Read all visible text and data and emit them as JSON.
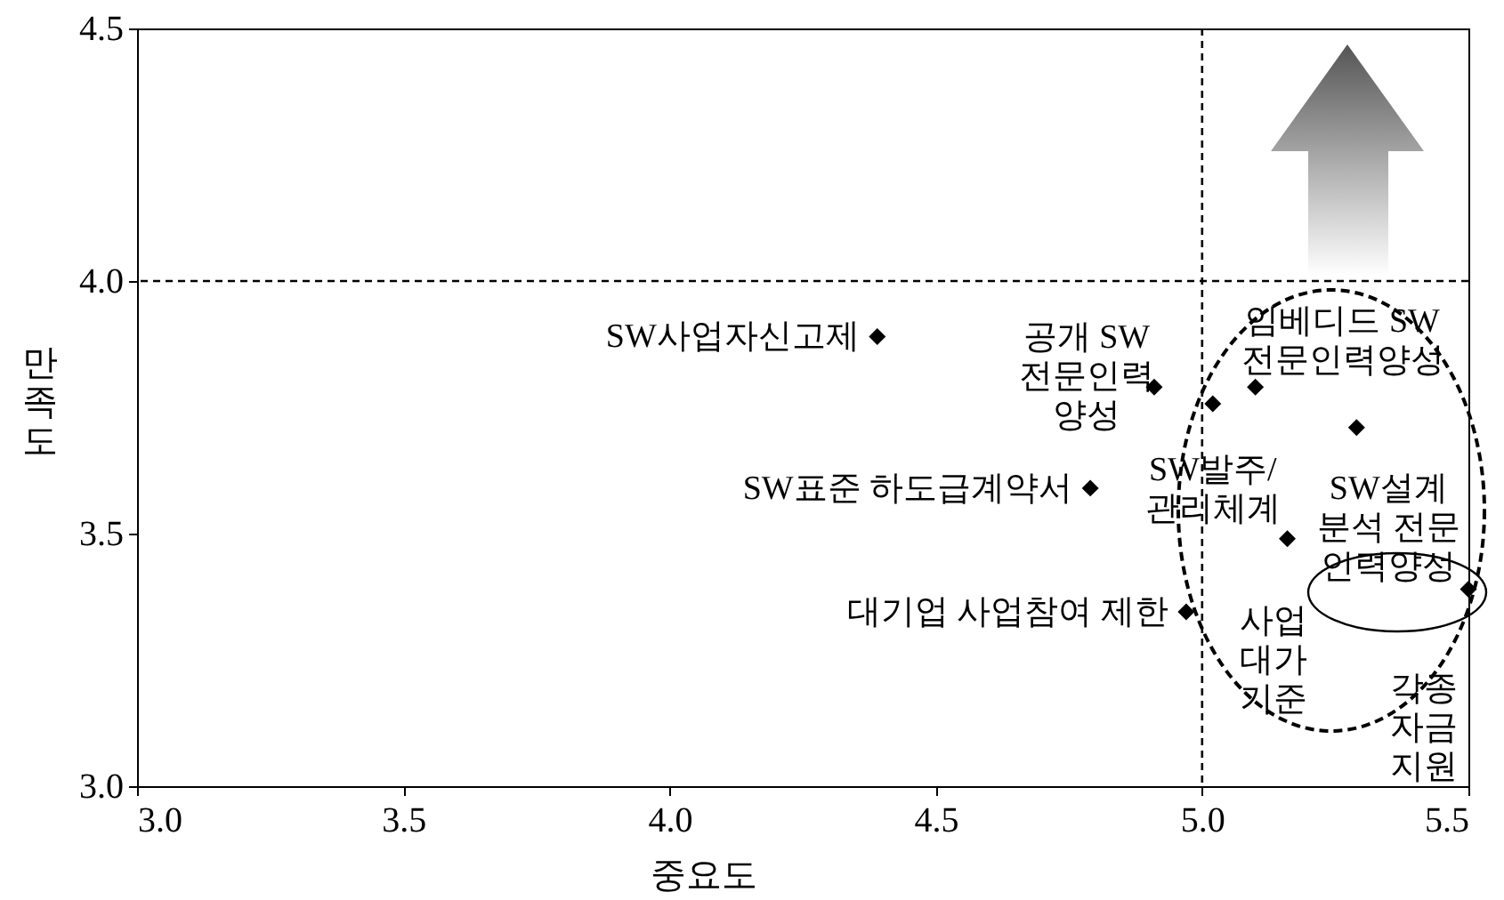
{
  "chart_data": {
    "type": "scatter",
    "xlabel": "중요도",
    "ylabel": "만족도",
    "xlim": [
      3.0,
      5.5
    ],
    "xticks": [
      {
        "value": 3,
        "label": "3.0"
      },
      {
        "value": 3.5,
        "label": "3.5"
      },
      {
        "value": 4,
        "label": "4.0"
      },
      {
        "value": 4.5,
        "label": "4.5"
      },
      {
        "value": 5,
        "label": "5.0"
      },
      {
        "value": 5.5,
        "label": "5.5"
      }
    ],
    "ylim": [
      3.0,
      4.5
    ],
    "yticks": [
      {
        "value": 3,
        "label": "3.0"
      },
      {
        "value": 3.5,
        "label": "3.5"
      },
      {
        "value": 4,
        "label": "4.0"
      },
      {
        "value": 4.5,
        "label": "4.5"
      }
    ],
    "grid": false,
    "marker": "diamond",
    "series": [
      {
        "color": "#000000",
        "x": [
          4.39,
          4.91,
          4.79,
          4.97,
          5.02,
          5.1,
          5.29,
          5.16,
          5.5
        ],
        "values": [
          3.89,
          3.79,
          3.59,
          3.345,
          3.757,
          3.79,
          3.71,
          3.49,
          3.39
        ]
      }
    ],
    "ref_lines": [
      {
        "axis": "x",
        "value": 5.0,
        "color": "#000000",
        "line_style": "dashed"
      },
      {
        "axis": "y",
        "value": 4.0,
        "color": "#000000",
        "line_style": "dashed"
      }
    ],
    "annotations": [
      {
        "text": "SW사업자신고제",
        "x": 4.39,
        "y": 3.89
      },
      {
        "text": "공개 SW\n전문인력\n양성",
        "x": 4.91,
        "y": 3.79
      },
      {
        "text": "SW표준 하도급계약서",
        "x": 4.79,
        "y": 3.59
      },
      {
        "text": "대기업 사업참여 제한",
        "x": 4.97,
        "y": 3.345
      },
      {
        "text": "SW발주/\n관리체계",
        "x": 5.02,
        "y": 3.757
      },
      {
        "text": "임베디드 SW\n전문인력양성",
        "x": 5.1,
        "y": 3.79
      },
      {
        "text": "SW설계\n분석 전문\n인력양성",
        "x": 5.29,
        "y": 3.71
      },
      {
        "text": "사업\n대가\n기준",
        "x": 5.16,
        "y": 3.49
      },
      {
        "text": "각종\n자금\n지원",
        "x": 5.5,
        "y": 3.39
      }
    ]
  }
}
